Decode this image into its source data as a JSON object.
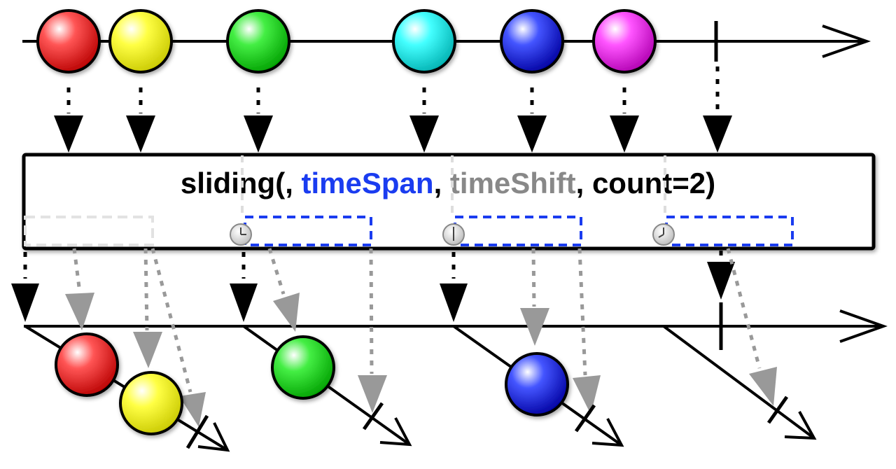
{
  "operator": {
    "name": "sliding(",
    "arg_timespan": "timeSpan",
    "sep1": ", ",
    "arg_timeshift": "timeShift",
    "sep2": ", ",
    "arg_count": "count=2)"
  },
  "colors": {
    "line": "#000000",
    "arg_timespan": "#1a3cf0",
    "arg_timeshift": "#888888",
    "window_active": "#1a3cf0",
    "window_ghost": "#dddddd",
    "ghost_arrow": "#999999",
    "marble_red": "#ee1111",
    "marble_yellow": "#ffff00",
    "marble_green": "#11dd11",
    "marble_cyan": "#11eeee",
    "marble_blue": "#1122ee",
    "marble_magenta": "#ee22ee"
  },
  "source_marbles": [
    {
      "color": "red"
    },
    {
      "color": "yellow"
    },
    {
      "color": "green"
    },
    {
      "color": "cyan"
    },
    {
      "color": "blue"
    },
    {
      "color": "magenta"
    }
  ],
  "windows": [
    {
      "marbles": [
        "red",
        "yellow"
      ]
    },
    {
      "marbles": [
        "green"
      ]
    },
    {
      "marbles": [
        "blue"
      ]
    },
    {
      "marbles": []
    }
  ],
  "icons": [
    "clock-icon",
    "clock-icon",
    "clock-icon"
  ]
}
